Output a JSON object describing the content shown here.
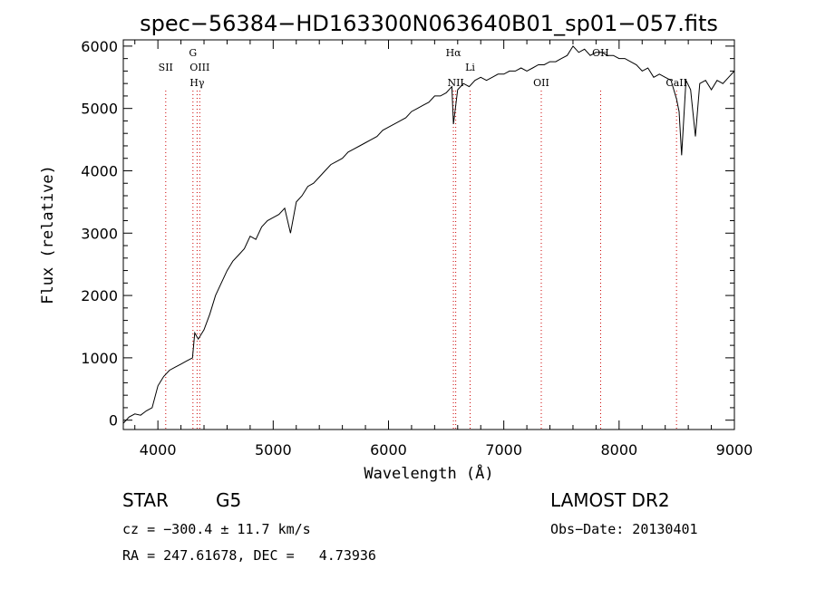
{
  "chart_data": {
    "type": "line",
    "title": "spec−56384−HD163300N063640B01_sp01−057.fits",
    "xlabel": "Wavelength (Å)",
    "ylabel": "Flux (relative)",
    "xlim": [
      3700,
      9000
    ],
    "ylim": [
      -150,
      6100
    ],
    "xticks": [
      4000,
      5000,
      6000,
      7000,
      8000,
      9000
    ],
    "yticks": [
      0,
      1000,
      2000,
      3000,
      4000,
      5000,
      6000
    ],
    "grid": false,
    "series": [
      {
        "color": "#000000",
        "x": [
          3700,
          3750,
          3800,
          3850,
          3900,
          3950,
          4000,
          4050,
          4100,
          4150,
          4200,
          4250,
          4300,
          4320,
          4350,
          4400,
          4450,
          4500,
          4550,
          4600,
          4650,
          4700,
          4750,
          4800,
          4850,
          4900,
          4950,
          5000,
          5050,
          5100,
          5150,
          5200,
          5250,
          5300,
          5350,
          5400,
          5450,
          5500,
          5550,
          5600,
          5650,
          5700,
          5750,
          5800,
          5850,
          5900,
          5950,
          6000,
          6050,
          6100,
          6150,
          6200,
          6250,
          6300,
          6350,
          6400,
          6450,
          6500,
          6550,
          6563,
          6600,
          6650,
          6700,
          6750,
          6800,
          6850,
          6900,
          6950,
          7000,
          7050,
          7100,
          7150,
          7200,
          7250,
          7300,
          7350,
          7400,
          7450,
          7500,
          7550,
          7600,
          7650,
          7700,
          7750,
          7800,
          7850,
          7900,
          7950,
          8000,
          8050,
          8100,
          8150,
          8200,
          8250,
          8300,
          8350,
          8400,
          8450,
          8498,
          8520,
          8542,
          8580,
          8620,
          8662,
          8700,
          8750,
          8800,
          8850,
          8900,
          8950,
          9000
        ],
        "y": [
          -50,
          50,
          100,
          80,
          150,
          200,
          550,
          700,
          800,
          850,
          900,
          950,
          1000,
          1400,
          1300,
          1450,
          1700,
          2000,
          2200,
          2400,
          2550,
          2650,
          2750,
          2950,
          2900,
          3100,
          3200,
          3250,
          3300,
          3400,
          3000,
          3500,
          3600,
          3750,
          3800,
          3900,
          4000,
          4100,
          4150,
          4200,
          4300,
          4350,
          4400,
          4450,
          4500,
          4550,
          4650,
          4700,
          4750,
          4800,
          4850,
          4950,
          5000,
          5050,
          5100,
          5200,
          5200,
          5250,
          5350,
          4750,
          5300,
          5400,
          5350,
          5450,
          5500,
          5450,
          5500,
          5550,
          5550,
          5600,
          5600,
          5650,
          5600,
          5650,
          5700,
          5700,
          5750,
          5750,
          5800,
          5850,
          6000,
          5900,
          5950,
          5850,
          5900,
          5900,
          5850,
          5850,
          5800,
          5800,
          5750,
          5700,
          5600,
          5650,
          5500,
          5550,
          5500,
          5450,
          5150,
          4950,
          4250,
          5450,
          5300,
          4550,
          5400,
          5450,
          5300,
          5450,
          5400,
          5500,
          5600
        ]
      }
    ],
    "lines": [
      {
        "label": "SII",
        "x": 4068
      },
      {
        "label": "G",
        "x": 4304
      },
      {
        "label": "OIII",
        "x": 4363
      },
      {
        "label": "Hγ",
        "x": 4340
      },
      {
        "label": "Hα",
        "x": 6563
      },
      {
        "label": "NII",
        "x": 6583
      },
      {
        "label": "Li",
        "x": 6708
      },
      {
        "label": "OII",
        "x": 7325
      },
      {
        "label": "OH",
        "x": 7840
      },
      {
        "label": "CaII",
        "x": 8498
      }
    ]
  },
  "info": {
    "class": "STAR",
    "subclass": "G5",
    "cz": "cz = −300.4 ± 11.7 km/s",
    "radec": "RA = 247.61678, DEC =   4.73936",
    "survey": "LAMOST DR2",
    "obsdate": "Obs−Date: 20130401"
  }
}
